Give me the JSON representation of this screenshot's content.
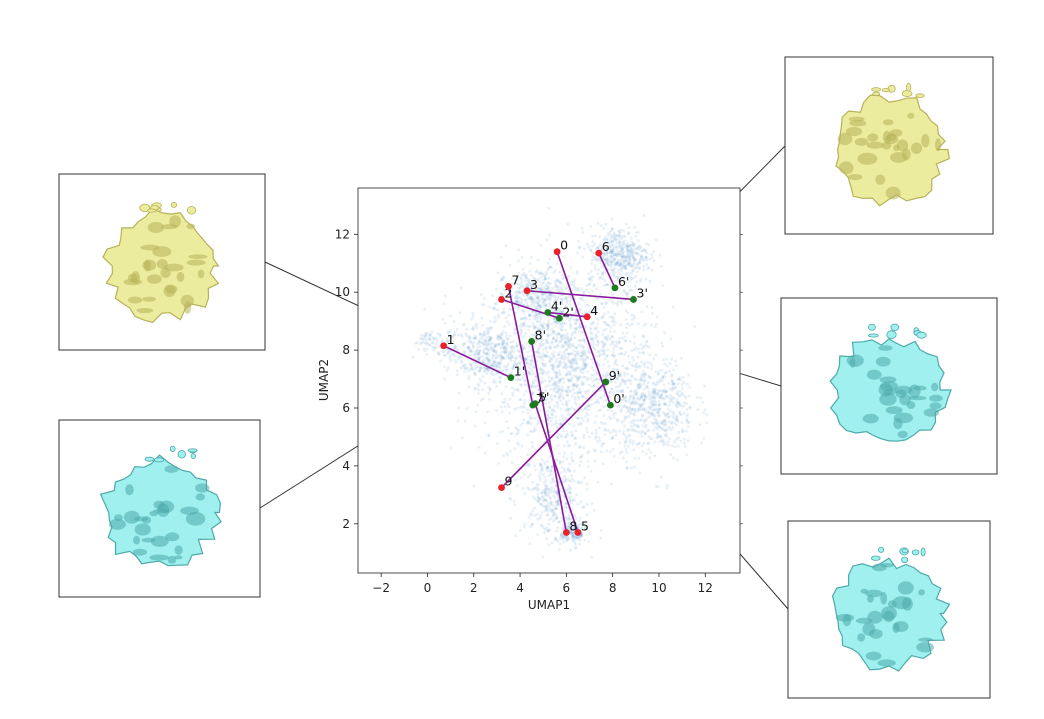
{
  "chart_data": {
    "type": "scatter",
    "title": "",
    "xlabel": "UMAP1",
    "ylabel": "UMAP2",
    "xlim": [
      -3.0,
      13.5
    ],
    "ylim": [
      0.3,
      13.6
    ],
    "xticks": [
      -2,
      0,
      2,
      4,
      6,
      8,
      10,
      12
    ],
    "yticks": [
      2,
      4,
      6,
      8,
      10,
      12
    ],
    "xtick_labels": [
      "−2",
      "0",
      "2",
      "4",
      "6",
      "8",
      "10",
      "12"
    ],
    "ytick_labels": [
      "2",
      "4",
      "6",
      "8",
      "10",
      "12"
    ],
    "grid": false,
    "background_color": "#4a8cc7",
    "start_color": "#e8212a",
    "end_color": "#1f7a1f",
    "pair_line_color": "#8a1a9b",
    "pairs": [
      {
        "start": {
          "label": "0",
          "x": 5.6,
          "y": 11.4
        },
        "end": {
          "label": "0'",
          "x": 7.9,
          "y": 6.1
        }
      },
      {
        "start": {
          "label": "1",
          "x": 0.7,
          "y": 8.15
        },
        "end": {
          "label": "1'",
          "x": 3.6,
          "y": 7.05
        }
      },
      {
        "start": {
          "label": "2",
          "x": 3.2,
          "y": 9.75
        },
        "end": {
          "label": "2'",
          "x": 5.7,
          "y": 9.1
        }
      },
      {
        "start": {
          "label": "3",
          "x": 4.3,
          "y": 10.05
        },
        "end": {
          "label": "3'",
          "x": 8.9,
          "y": 9.75
        }
      },
      {
        "start": {
          "label": "4",
          "x": 6.9,
          "y": 9.15
        },
        "end": {
          "label": "4'",
          "x": 5.2,
          "y": 9.3
        }
      },
      {
        "start": {
          "label": "5",
          "x": 6.5,
          "y": 1.7
        },
        "end": {
          "label": "5'",
          "x": 4.65,
          "y": 6.15
        }
      },
      {
        "start": {
          "label": "6",
          "x": 7.4,
          "y": 11.35
        },
        "end": {
          "label": "6'",
          "x": 8.1,
          "y": 10.15
        }
      },
      {
        "start": {
          "label": "7",
          "x": 3.5,
          "y": 10.2
        },
        "end": {
          "label": "7'",
          "x": 4.55,
          "y": 6.1
        }
      },
      {
        "start": {
          "label": "8",
          "x": 6.0,
          "y": 1.7
        },
        "end": {
          "label": "8'",
          "x": 4.5,
          "y": 8.3
        }
      },
      {
        "start": {
          "label": "9",
          "x": 3.2,
          "y": 3.25
        },
        "end": {
          "label": "9'",
          "x": 7.7,
          "y": 6.9
        }
      }
    ],
    "density_points": []
  },
  "thumbnails": [
    {
      "color": "#ecec9e",
      "shade": "#b7b25a",
      "target": "1"
    },
    {
      "color": "#9ff0ef",
      "shade": "#4ea9aa",
      "target": "2'"
    },
    {
      "color": "#ecec9e",
      "shade": "#b7b25a",
      "target": "3'"
    },
    {
      "color": "#9ff0ef",
      "shade": "#4ea9aa",
      "target": "2'"
    },
    {
      "color": "#9ff0ef",
      "shade": "#4ea9aa",
      "target": "0'"
    }
  ]
}
